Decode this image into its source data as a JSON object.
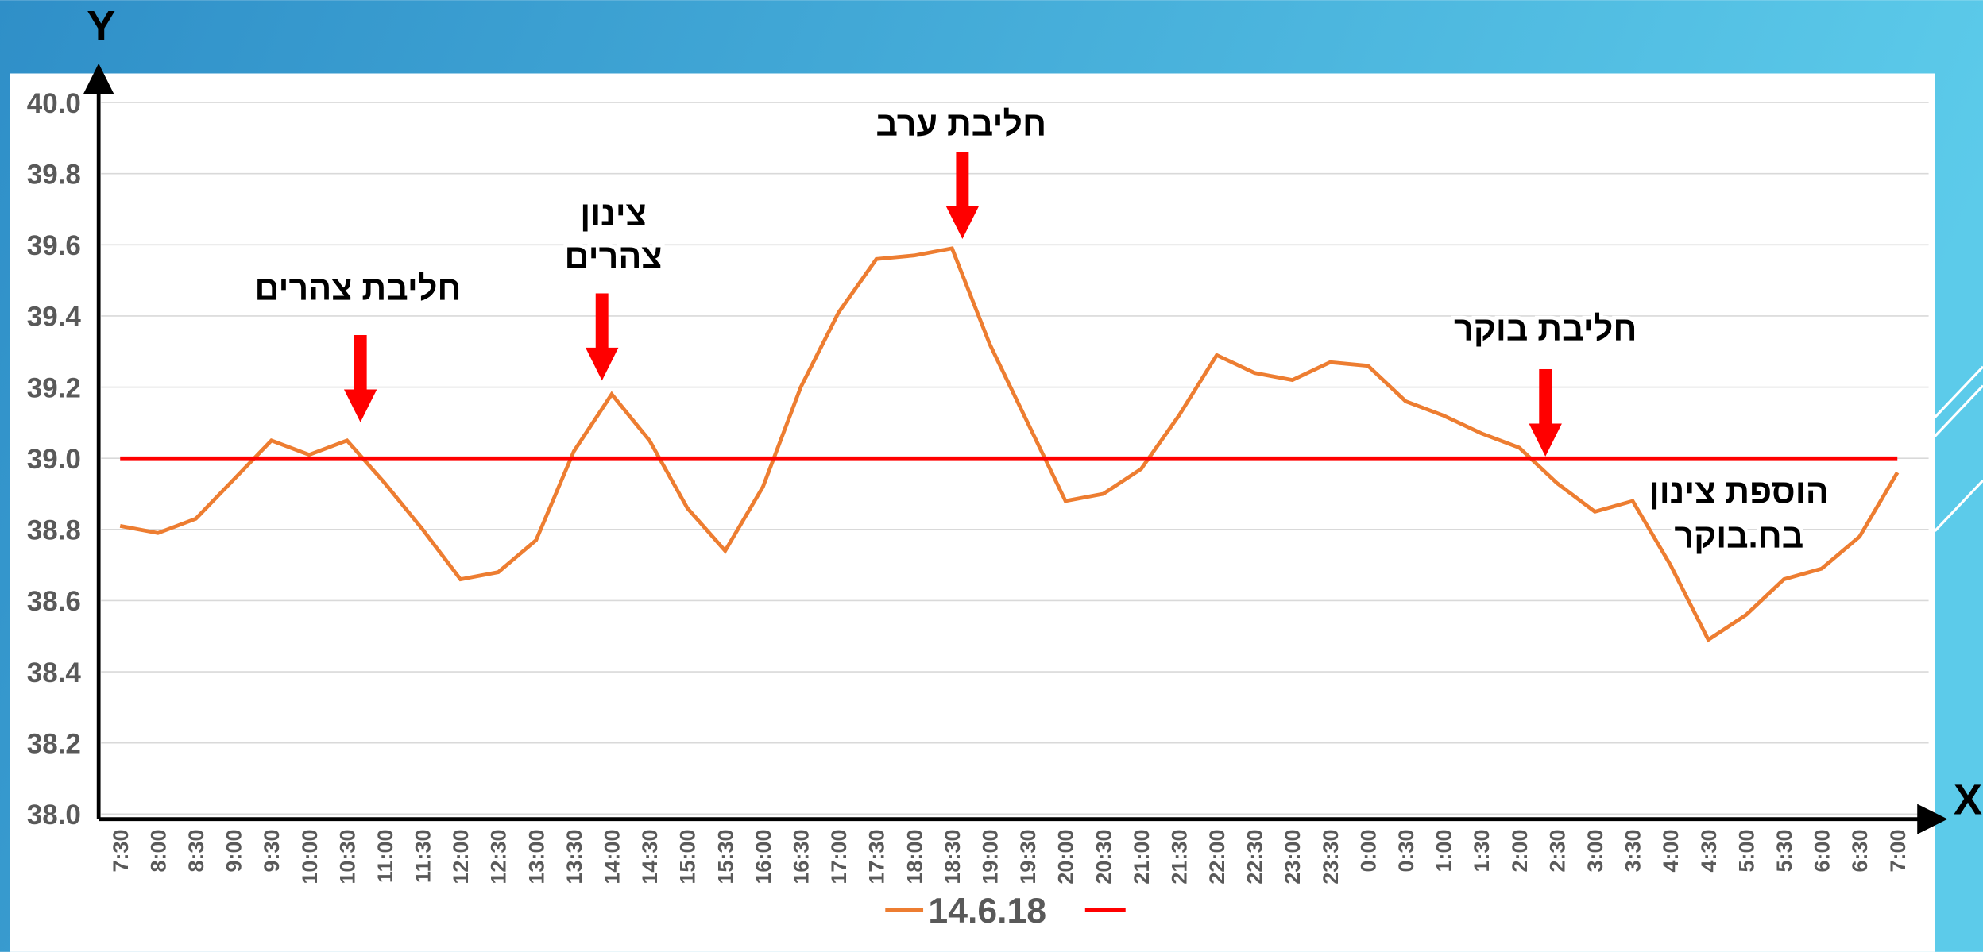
{
  "chart_data": {
    "type": "line",
    "categories": [
      "7:30",
      "8:00",
      "8:30",
      "9:00",
      "9:30",
      "10:00",
      "10:30",
      "11:00",
      "11:30",
      "12:00",
      "12:30",
      "13:00",
      "13:30",
      "14:00",
      "14:30",
      "15:00",
      "15:30",
      "16:00",
      "16:30",
      "17:00",
      "17:30",
      "18:00",
      "18:30",
      "19:00",
      "19:30",
      "20:00",
      "20:30",
      "21:00",
      "21:30",
      "22:00",
      "22:30",
      "23:00",
      "23:30",
      "0:00",
      "0:30",
      "1:00",
      "1:30",
      "2:00",
      "2:30",
      "3:00",
      "3:30",
      "4:00",
      "4:30",
      "5:00",
      "5:30",
      "6:00",
      "6:30",
      "7:00"
    ],
    "series": [
      {
        "name": "14.6.18",
        "color": "#ed7d31",
        "values": [
          38.81,
          38.79,
          38.83,
          38.94,
          39.05,
          39.01,
          39.05,
          38.93,
          38.8,
          38.66,
          38.68,
          38.77,
          39.02,
          39.18,
          39.05,
          38.86,
          38.74,
          38.92,
          39.2,
          39.41,
          39.56,
          39.57,
          39.59,
          39.32,
          39.1,
          38.88,
          38.9,
          38.97,
          39.12,
          39.29,
          39.24,
          39.22,
          39.27,
          39.26,
          39.16,
          39.12,
          39.07,
          39.03,
          38.93,
          38.85,
          38.88,
          38.7,
          38.49,
          38.56,
          38.66,
          38.69,
          38.78,
          38.96
        ]
      },
      {
        "color": "#ff0000",
        "values": [
          39,
          39,
          39,
          39,
          39,
          39,
          39,
          39,
          39,
          39,
          39,
          39,
          39,
          39,
          39,
          39,
          39,
          39,
          39,
          39,
          39,
          39,
          39,
          39,
          39,
          39,
          39,
          39,
          39,
          39,
          39,
          39,
          39,
          39,
          39,
          39,
          39,
          39,
          39,
          39,
          39,
          39,
          39,
          39,
          39,
          39,
          39,
          39
        ]
      }
    ],
    "ylim": [
      38,
      40
    ],
    "yticks": [
      {
        "value": 38,
        "label": "38.0"
      },
      38.2,
      38.4,
      38.6,
      38.8,
      {
        "value": 39,
        "label": "39.0"
      },
      39.2,
      39.4,
      39.6,
      39.8,
      {
        "value": 40,
        "label": "40.0"
      }
    ],
    "grid": true,
    "xlabel": "X",
    "ylabel": "Y",
    "annotations": [
      {
        "lines": [
          "חליבת צהרים"
        ]
      },
      {
        "lines": [
          "צינון",
          "צהרים"
        ]
      },
      {
        "lines": [
          "חליבת ערב"
        ]
      },
      {
        "lines": [
          "חליבת בוקר"
        ]
      },
      {
        "lines": [
          "הוספת צינון",
          "בח.בוקר"
        ]
      }
    ]
  }
}
